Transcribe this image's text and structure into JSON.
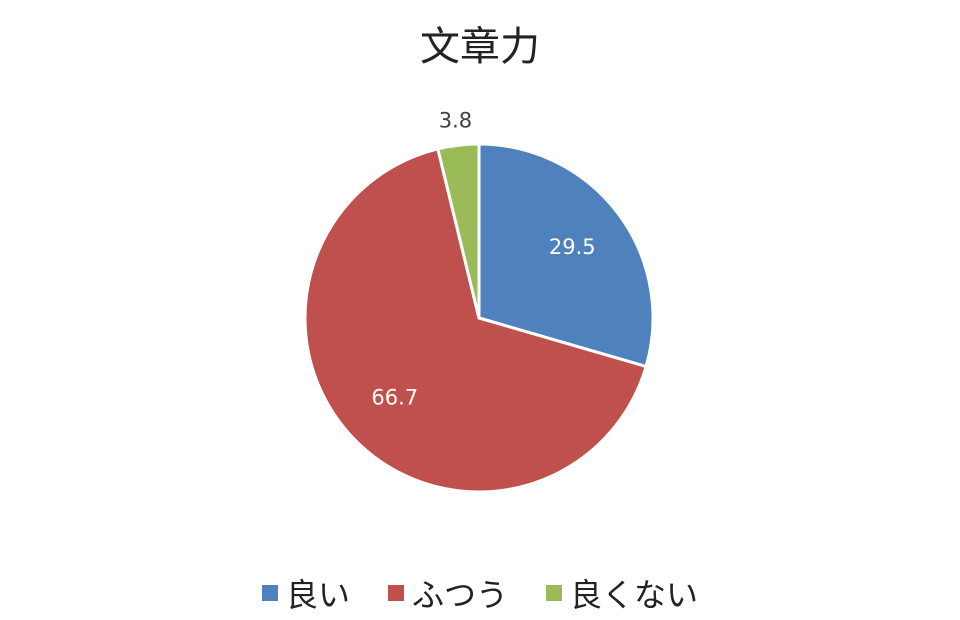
{
  "chart_data": {
    "type": "pie",
    "title": "文章力",
    "categories": [
      "良い",
      "ふつう",
      "良くない"
    ],
    "values": [
      29.5,
      66.7,
      3.8
    ],
    "colors": [
      "#4f81bd",
      "#c0504d",
      "#9bbb59"
    ],
    "data_labels": [
      "29.5",
      "66.7",
      "3.8"
    ],
    "legend_position": "bottom"
  }
}
